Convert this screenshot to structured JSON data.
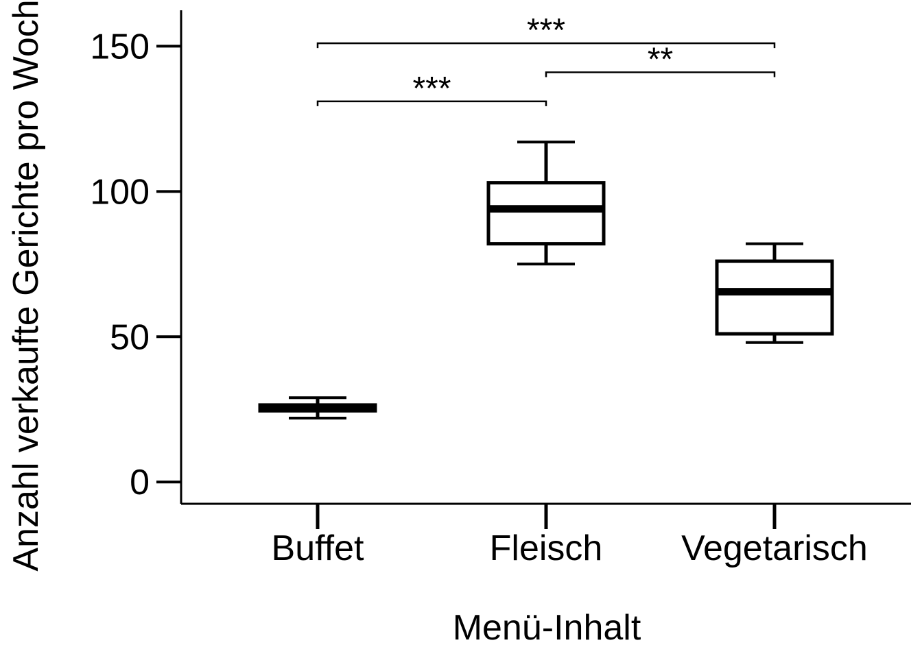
{
  "chart_data": {
    "type": "box",
    "xlabel": "Menü-Inhalt",
    "ylabel": "Anzahl verkaufte Gerichte pro Woche",
    "ylim": [
      -7.5,
      160
    ],
    "yticks": [
      0,
      50,
      100,
      150
    ],
    "categories": [
      "Buffet",
      "Fleisch",
      "Vegetarisch"
    ],
    "boxes": [
      {
        "category": "Buffet",
        "whisker_low": 22,
        "q1": 24.5,
        "median": 25.5,
        "q3": 26.5,
        "whisker_high": 29
      },
      {
        "category": "Fleisch",
        "whisker_low": 75,
        "q1": 82,
        "median": 94,
        "q3": 103,
        "whisker_high": 117
      },
      {
        "category": "Vegetarisch",
        "whisker_low": 48,
        "q1": 51,
        "median": 65.5,
        "q3": 76,
        "whisker_high": 82
      }
    ],
    "significance": [
      {
        "from": "Buffet",
        "to": "Vegetarisch",
        "y": 151,
        "label": "***"
      },
      {
        "from": "Fleisch",
        "to": "Vegetarisch",
        "y": 141,
        "label": "**"
      },
      {
        "from": "Buffet",
        "to": "Fleisch",
        "y": 131,
        "label": "***"
      }
    ],
    "grid": false,
    "legend": "none"
  }
}
